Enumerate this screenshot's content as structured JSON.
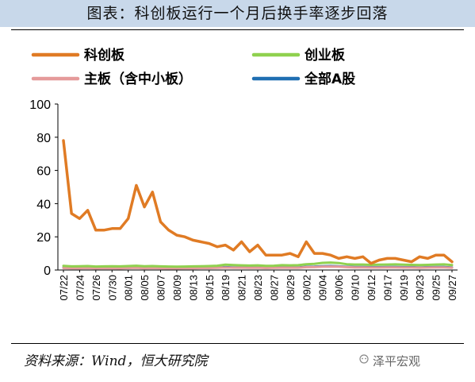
{
  "header": {
    "title": "图表：科创板运行一个月后换手率逐步回落"
  },
  "footer": {
    "source": "资料来源：Wind，恒大研究院",
    "watermark": "泽平宏观"
  },
  "colors": {
    "title_band": "#c8d8ea",
    "kechuang": "#e07b24",
    "chuangye": "#8fd14f",
    "zhuban": "#e59a9a",
    "quanbu": "#1f6fb2"
  },
  "chart_data": {
    "type": "line",
    "title": "",
    "xlabel": "",
    "ylabel": "",
    "ylim": [
      0,
      100
    ],
    "yticks": [
      0,
      20,
      40,
      60,
      80,
      100
    ],
    "grid": false,
    "legend_position": "top",
    "x": [
      "07/22",
      "07/23",
      "07/24",
      "07/25",
      "07/26",
      "07/29",
      "07/30",
      "07/31",
      "08/01",
      "08/02",
      "08/05",
      "08/06",
      "08/07",
      "08/08",
      "08/09",
      "08/12",
      "08/13",
      "08/14",
      "08/15",
      "08/16",
      "08/19",
      "08/20",
      "08/21",
      "08/22",
      "08/23",
      "08/26",
      "08/27",
      "08/28",
      "08/29",
      "08/30",
      "09/02",
      "09/03",
      "09/04",
      "09/05",
      "09/06",
      "09/09",
      "09/10",
      "09/11",
      "09/12",
      "09/16",
      "09/17",
      "09/18",
      "09/19",
      "09/20",
      "09/23",
      "09/24",
      "09/25",
      "09/26",
      "09/27"
    ],
    "xtick_labels": [
      "07/22",
      "07/24",
      "07/26",
      "07/30",
      "08/01",
      "08/05",
      "08/07",
      "08/09",
      "08/13",
      "08/15",
      "08/19",
      "08/21",
      "08/23",
      "08/27",
      "08/29",
      "09/02",
      "09/04",
      "09/06",
      "09/10",
      "09/12",
      "09/17",
      "09/19",
      "09/23",
      "09/25",
      "09/27"
    ],
    "series": [
      {
        "name": "科创板",
        "color": "#e07b24",
        "values": [
          78,
          34,
          31,
          36,
          24,
          24,
          25,
          25,
          31,
          51,
          38,
          47,
          29,
          24,
          21,
          20,
          18,
          17,
          16,
          14,
          15,
          12,
          17,
          11,
          15,
          9,
          9,
          9,
          10,
          8,
          17,
          10,
          10,
          9,
          7,
          8,
          7,
          8,
          4,
          6,
          7,
          7,
          6,
          5,
          8,
          7,
          9,
          9,
          5
        ]
      },
      {
        "name": "创业板",
        "color": "#8fd14f",
        "values": [
          2.5,
          2.2,
          2.3,
          2.4,
          2.1,
          2.2,
          2.3,
          2.2,
          2.4,
          2.6,
          2.3,
          2.4,
          2.2,
          2.1,
          2.0,
          2.1,
          2.2,
          2.3,
          2.4,
          2.6,
          3.2,
          3.0,
          2.8,
          2.7,
          2.8,
          2.5,
          2.6,
          2.9,
          2.8,
          2.9,
          3.5,
          3.7,
          4.3,
          4.5,
          4.2,
          3.5,
          3.3,
          3.3,
          3.1,
          3.2,
          3.3,
          3.4,
          3.2,
          3.1,
          3.0,
          3.1,
          3.3,
          3.4,
          3.0
        ]
      },
      {
        "name": "主板（含中小板）",
        "color": "#e59a9a",
        "values": [
          1.2,
          1.1,
          1.1,
          1.2,
          1.0,
          1.1,
          1.1,
          1.0,
          1.2,
          1.3,
          1.1,
          1.2,
          1.1,
          1.0,
          1.0,
          1.1,
          1.1,
          1.2,
          1.2,
          1.3,
          1.5,
          1.4,
          1.4,
          1.3,
          1.4,
          1.2,
          1.3,
          1.4,
          1.4,
          1.4,
          1.7,
          1.8,
          2.0,
          2.1,
          2.0,
          1.7,
          1.6,
          1.6,
          1.5,
          1.5,
          1.6,
          1.6,
          1.5,
          1.5,
          1.4,
          1.5,
          1.6,
          1.6,
          1.4
        ]
      },
      {
        "name": "全部A股",
        "color": "#1f6fb2",
        "values": [
          1.4,
          1.3,
          1.3,
          1.4,
          1.2,
          1.3,
          1.3,
          1.2,
          1.4,
          1.5,
          1.3,
          1.4,
          1.3,
          1.2,
          1.2,
          1.3,
          1.3,
          1.4,
          1.4,
          1.5,
          1.7,
          1.6,
          1.6,
          1.5,
          1.6,
          1.4,
          1.5,
          1.6,
          1.6,
          1.6,
          1.9,
          2.0,
          2.3,
          2.4,
          2.2,
          1.9,
          1.8,
          1.8,
          1.7,
          1.7,
          1.8,
          1.8,
          1.7,
          1.7,
          1.6,
          1.7,
          1.8,
          1.8,
          1.6
        ]
      }
    ]
  }
}
